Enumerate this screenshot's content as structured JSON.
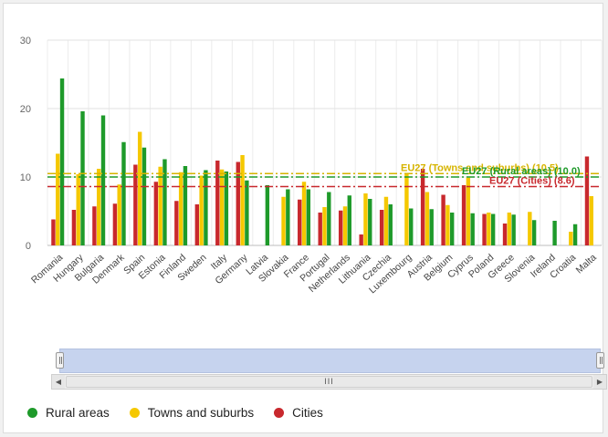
{
  "chart_data": {
    "type": "bar",
    "ylim": [
      0,
      30
    ],
    "yticks": [
      0,
      10,
      20,
      30
    ],
    "grid": "horizontal and vertical",
    "legend_position": "bottom-left",
    "categories": [
      "Romania",
      "Hungary",
      "Bulgaria",
      "Denmark",
      "Spain",
      "Estonia",
      "Finland",
      "Sweden",
      "Italy",
      "Germany",
      "Latvia",
      "Slovakia",
      "France",
      "Portugal",
      "Netherlands",
      "Lithuania",
      "Czechia",
      "Luxembourg",
      "Austria",
      "Belgium",
      "Cyprus",
      "Poland",
      "Greece",
      "Slovenia",
      "Ireland",
      "Croatia",
      "Malta"
    ],
    "series": [
      {
        "name": "Cities",
        "color": "#c8282d",
        "values": [
          3.8,
          5.2,
          5.7,
          6.1,
          11.8,
          9.3,
          6.5,
          6.0,
          12.4,
          12.2,
          null,
          null,
          6.7,
          4.8,
          5.1,
          1.6,
          5.2,
          null,
          11.2,
          7.4,
          8.8,
          4.6,
          3.2,
          null,
          null,
          null,
          13.0
        ]
      },
      {
        "name": "Towns and suburbs",
        "color": "#f5c800",
        "values": [
          13.4,
          10.4,
          11.2,
          8.9,
          16.6,
          11.5,
          10.7,
          10.2,
          11.1,
          13.2,
          null,
          7.1,
          9.3,
          5.6,
          5.7,
          7.6,
          7.1,
          10.6,
          7.8,
          5.9,
          9.9,
          4.8,
          4.8,
          4.9,
          null,
          2.0,
          7.2
        ]
      },
      {
        "name": "Rural areas",
        "color": "#1e9a2a",
        "values": [
          24.4,
          19.6,
          19.0,
          15.1,
          14.3,
          12.6,
          11.6,
          11.0,
          10.8,
          9.5,
          8.8,
          8.2,
          8.2,
          7.8,
          7.3,
          6.8,
          6.0,
          5.4,
          5.3,
          4.8,
          4.7,
          4.6,
          4.5,
          3.7,
          3.6,
          3.1,
          null
        ]
      }
    ],
    "reference_lines": [
      {
        "label": "EU27 (Towns and suburbs) (10.5)",
        "value": 10.5,
        "color": "#d6b400"
      },
      {
        "label": "EU27 (Rural areas) (10.0)",
        "value": 10.0,
        "color": "#1e9a2a"
      },
      {
        "label": "EU27 (Cities) (8.6)",
        "value": 8.6,
        "color": "#c8282d"
      }
    ]
  },
  "legend": [
    {
      "name": "Rural areas",
      "color": "#1e9a2a"
    },
    {
      "name": "Towns and suburbs",
      "color": "#f5c800"
    },
    {
      "name": "Cities",
      "color": "#c8282d"
    }
  ],
  "scrollbar": {
    "thumb_grip": "III",
    "left_arrow": "◀",
    "right_arrow": "▶"
  }
}
